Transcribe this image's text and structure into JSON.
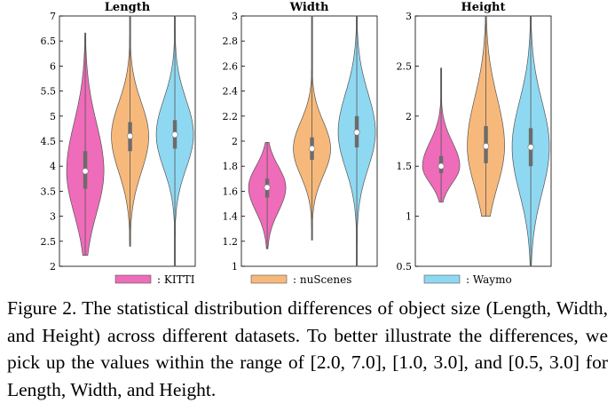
{
  "chart_data": [
    {
      "type": "violin",
      "title": "Length",
      "ylim": [
        2,
        7
      ],
      "yticks": [
        "2",
        "2.5",
        "3",
        "3.5",
        "4",
        "4.5",
        "5",
        "5.5",
        "6",
        "6.5",
        "7"
      ],
      "series": [
        {
          "name": ": KITTI",
          "color": "#ee6cb9",
          "min": 2.22,
          "max": 6.66,
          "median": 3.9,
          "q1": 3.55,
          "q3": 4.3
        },
        {
          "name": ": nuScenes",
          "color": "#f7b97b",
          "min": 2.4,
          "max": 7.0,
          "median": 4.6,
          "q1": 4.3,
          "q3": 4.88
        },
        {
          "name": ": Waymo",
          "color": "#8fd8f2",
          "min": 2.0,
          "max": 7.0,
          "median": 4.63,
          "q1": 4.35,
          "q3": 4.92
        }
      ]
    },
    {
      "type": "violin",
      "title": "Width",
      "ylim": [
        1,
        3
      ],
      "yticks": [
        "1",
        "1.2",
        "1.4",
        "1.6",
        "1.8",
        "2",
        "2.2",
        "2.4",
        "2.6",
        "2.8",
        "3"
      ],
      "series": [
        {
          "name": ": KITTI",
          "color": "#ee6cb9",
          "min": 1.14,
          "max": 1.99,
          "median": 1.63,
          "q1": 1.55,
          "q3": 1.7
        },
        {
          "name": ": nuScenes",
          "color": "#f7b97b",
          "min": 1.21,
          "max": 3.0,
          "median": 1.94,
          "q1": 1.85,
          "q3": 2.03
        },
        {
          "name": ": Waymo",
          "color": "#8fd8f2",
          "min": 1.0,
          "max": 3.0,
          "median": 2.07,
          "q1": 1.95,
          "q3": 2.2
        }
      ]
    },
    {
      "type": "violin",
      "title": "Height",
      "ylim": [
        0.5,
        3
      ],
      "yticks": [
        "0.5",
        "1",
        "1.5",
        "2",
        "2.5",
        "3"
      ],
      "series": [
        {
          "name": ": KITTI",
          "color": "#ee6cb9",
          "min": 1.14,
          "max": 2.48,
          "median": 1.5,
          "q1": 1.43,
          "q3": 1.6
        },
        {
          "name": ": nuScenes",
          "color": "#f7b97b",
          "min": 1.0,
          "max": 3.0,
          "median": 1.7,
          "q1": 1.53,
          "q3": 1.9
        },
        {
          "name": ": Waymo",
          "color": "#8fd8f2",
          "min": 0.5,
          "max": 3.0,
          "median": 1.69,
          "q1": 1.5,
          "q3": 1.88
        }
      ]
    }
  ],
  "legend": [
    {
      "label": ": KITTI",
      "color": "#ee6cb9"
    },
    {
      "label": ": nuScenes",
      "color": "#f7b97b"
    },
    {
      "label": ": Waymo",
      "color": "#8fd8f2"
    }
  ],
  "caption": "Figure 2.  The statistical distribution differences of object size (Length, Width, and Height) across different datasets. To better illustrate the differences, we pick up the values within the range of [2.0, 7.0], [1.0, 3.0], and [0.5, 3.0] for Length, Width, and Height."
}
